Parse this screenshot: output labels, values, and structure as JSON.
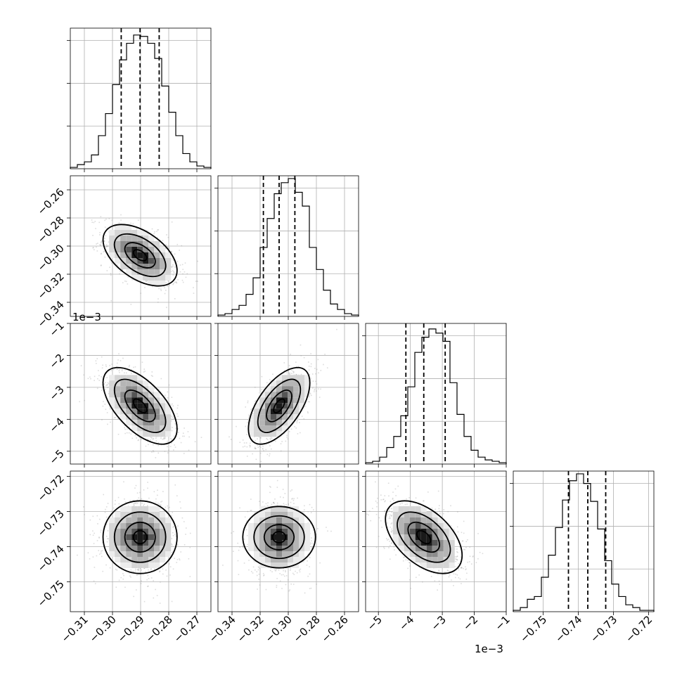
{
  "chart_data": {
    "type": "corner",
    "title": "",
    "parameters": [
      {
        "ticks": [
          -0.31,
          -0.3,
          -0.29,
          -0.28,
          -0.27
        ],
        "tick_labels": [
          "−0.31",
          "−0.30",
          "−0.29",
          "−0.28",
          "−0.27"
        ],
        "range": [
          -0.315,
          -0.265
        ],
        "quantiles": [
          -0.2969,
          -0.2902,
          -0.2834
        ],
        "hist": [
          0.01,
          0.03,
          0.05,
          0.1,
          0.24,
          0.4,
          0.61,
          0.79,
          0.91,
          0.97,
          0.96,
          0.91,
          0.8,
          0.6,
          0.41,
          0.24,
          0.11,
          0.05,
          0.02,
          0.01
        ]
      },
      {
        "ticks": [
          -0.34,
          -0.32,
          -0.3,
          -0.28,
          -0.26
        ],
        "tick_labels": [
          "−0.34",
          "−0.32",
          "−0.30",
          "−0.28",
          "−0.26"
        ],
        "range": [
          -0.35,
          -0.25
        ],
        "quantiles": [
          -0.3177,
          -0.3065,
          -0.2953
        ],
        "hist": [
          0.01,
          0.02,
          0.05,
          0.08,
          0.16,
          0.28,
          0.5,
          0.71,
          0.89,
          0.97,
          1.0,
          0.9,
          0.8,
          0.5,
          0.34,
          0.19,
          0.09,
          0.05,
          0.02,
          0.01
        ]
      },
      {
        "ticks": [
          -5,
          -4,
          -3,
          -2,
          -1
        ],
        "tick_labels": [
          "−5",
          "−4",
          "−3",
          "−2",
          "−1"
        ],
        "range": [
          -5.4,
          -1.0
        ],
        "quantiles": [
          -4.14,
          -3.58,
          -2.91
        ],
        "hist": [
          0.01,
          0.02,
          0.05,
          0.12,
          0.2,
          0.35,
          0.56,
          0.81,
          0.92,
          0.98,
          0.95,
          0.89,
          0.59,
          0.36,
          0.2,
          0.1,
          0.05,
          0.03,
          0.02,
          0.01
        ],
        "offset_label": "1e−3"
      },
      {
        "ticks": [
          -0.75,
          -0.74,
          -0.73,
          -0.72
        ],
        "tick_labels": [
          "−0.75",
          "−0.74",
          "−0.73",
          "−0.72"
        ],
        "range": [
          -0.7585,
          -0.7185
        ],
        "quantiles": [
          -0.7428,
          -0.7373,
          -0.7322
        ],
        "hist": [
          0.01,
          0.03,
          0.09,
          0.11,
          0.25,
          0.41,
          0.61,
          0.81,
          0.95,
          1.0,
          0.93,
          0.8,
          0.6,
          0.37,
          0.2,
          0.11,
          0.05,
          0.03,
          0.01,
          0.01
        ]
      }
    ],
    "correlations": {
      "0,1": -0.5,
      "0,2": -0.6,
      "1,2": 0.6,
      "0,3": 0.0,
      "1,3": 0.0,
      "2,3": -0.5
    },
    "hist_y_ticks": 3,
    "grid": true,
    "contour_levels": 4
  }
}
